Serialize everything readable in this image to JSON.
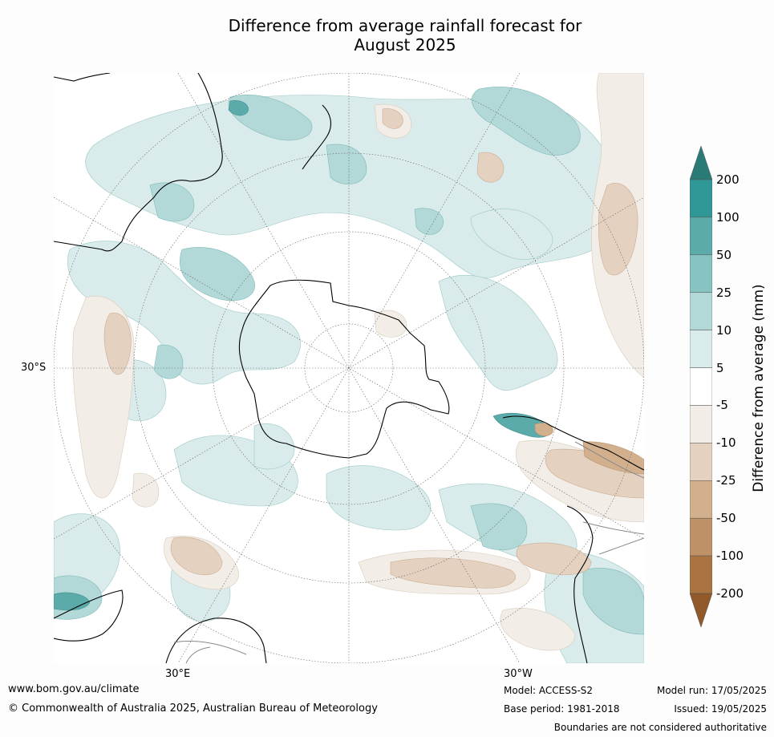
{
  "title_line1": "Difference from average rainfall forecast for",
  "title_line2": "August 2025",
  "map": {
    "projection": "south polar stereographic",
    "lat_label": "30°S",
    "lon_label_left": "30°E",
    "lon_label_right": "30°W",
    "colors": {
      "land_outline": "#000000",
      "graticule": "#666666",
      "border": "#888888"
    }
  },
  "colorbar": {
    "title": "Difference from average (mm)",
    "ticks": [
      "200",
      "100",
      "50",
      "25",
      "10",
      "5",
      "-5",
      "-10",
      "-25",
      "-50",
      "-100",
      "-200"
    ],
    "colors": [
      "#2a7b78",
      "#2f9896",
      "#5aabaa",
      "#86c3c1",
      "#b2d9d7",
      "#d9ebea",
      "#ffffff",
      "#f2ede7",
      "#e4d1bf",
      "#d2b08e",
      "#bf9166",
      "#aa7440",
      "#91592a"
    ]
  },
  "footer": {
    "website": "www.bom.gov.au/climate",
    "copyright": "© Commonwealth of Australia 2025, Australian Bureau of Meteorology",
    "model": "Model: ACCESS-S2",
    "base_period": "Base period: 1981-2018",
    "model_run": "Model run: 17/05/2025",
    "issued": "Issued: 19/05/2025",
    "disclaimer": "Boundaries are not considered authoritative"
  }
}
